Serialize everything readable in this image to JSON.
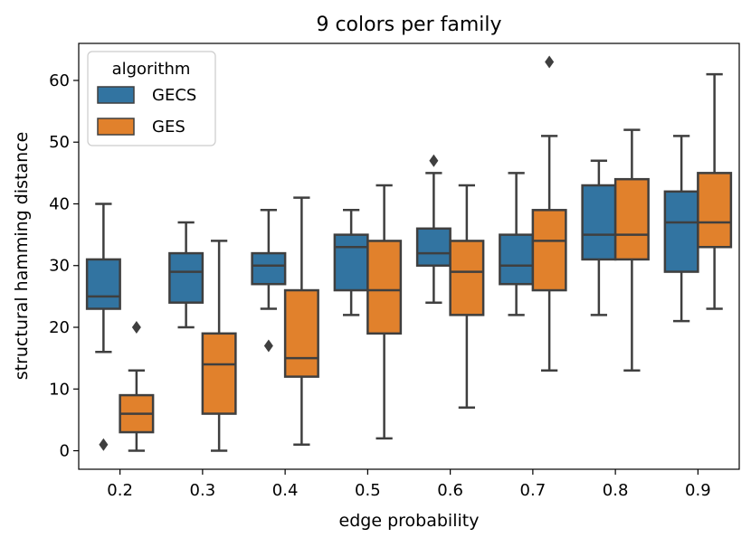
{
  "chart_data": {
    "type": "box",
    "title": "9 colors per family",
    "xlabel": "edge probability",
    "ylabel": "structural hamming distance",
    "categories": [
      "0.2",
      "0.3",
      "0.4",
      "0.5",
      "0.6",
      "0.7",
      "0.8",
      "0.9"
    ],
    "ylim": [
      -3,
      66
    ],
    "yticks": [
      0,
      10,
      20,
      30,
      40,
      50,
      60
    ],
    "legend": {
      "title": "algorithm",
      "placement": "top-left"
    },
    "series": [
      {
        "name": "GECS",
        "color": "#3274a1",
        "boxes": [
          {
            "whislo": 16,
            "q1": 23,
            "med": 25,
            "q3": 31,
            "whishi": 40,
            "fliers": [
              1
            ]
          },
          {
            "whislo": 20,
            "q1": 24,
            "med": 29,
            "q3": 32,
            "whishi": 37,
            "fliers": []
          },
          {
            "whislo": 23,
            "q1": 27,
            "med": 30,
            "q3": 32,
            "whishi": 39,
            "fliers": [
              17
            ]
          },
          {
            "whislo": 22,
            "q1": 26,
            "med": 33,
            "q3": 35,
            "whishi": 39,
            "fliers": []
          },
          {
            "whislo": 24,
            "q1": 30,
            "med": 32,
            "q3": 36,
            "whishi": 45,
            "fliers": [
              47
            ]
          },
          {
            "whislo": 22,
            "q1": 27,
            "med": 30,
            "q3": 35,
            "whishi": 45,
            "fliers": []
          },
          {
            "whislo": 22,
            "q1": 31,
            "med": 35,
            "q3": 43,
            "whishi": 47,
            "fliers": []
          },
          {
            "whislo": 21,
            "q1": 29,
            "med": 37,
            "q3": 42,
            "whishi": 51,
            "fliers": []
          }
        ]
      },
      {
        "name": "GES",
        "color": "#e1812c",
        "boxes": [
          {
            "whislo": 0,
            "q1": 3,
            "med": 6,
            "q3": 9,
            "whishi": 13,
            "fliers": [
              20
            ]
          },
          {
            "whislo": 0,
            "q1": 6,
            "med": 14,
            "q3": 19,
            "whishi": 34,
            "fliers": []
          },
          {
            "whislo": 1,
            "q1": 12,
            "med": 15,
            "q3": 26,
            "whishi": 41,
            "fliers": []
          },
          {
            "whislo": 2,
            "q1": 19,
            "med": 26,
            "q3": 34,
            "whishi": 43,
            "fliers": []
          },
          {
            "whislo": 7,
            "q1": 22,
            "med": 29,
            "q3": 34,
            "whishi": 43,
            "fliers": []
          },
          {
            "whislo": 13,
            "q1": 26,
            "med": 34,
            "q3": 39,
            "whishi": 51,
            "fliers": [
              63
            ]
          },
          {
            "whislo": 13,
            "q1": 31,
            "med": 35,
            "q3": 44,
            "whishi": 52,
            "fliers": []
          },
          {
            "whislo": 23,
            "q1": 33,
            "med": 37,
            "q3": 45,
            "whishi": 61,
            "fliers": []
          }
        ]
      }
    ]
  }
}
